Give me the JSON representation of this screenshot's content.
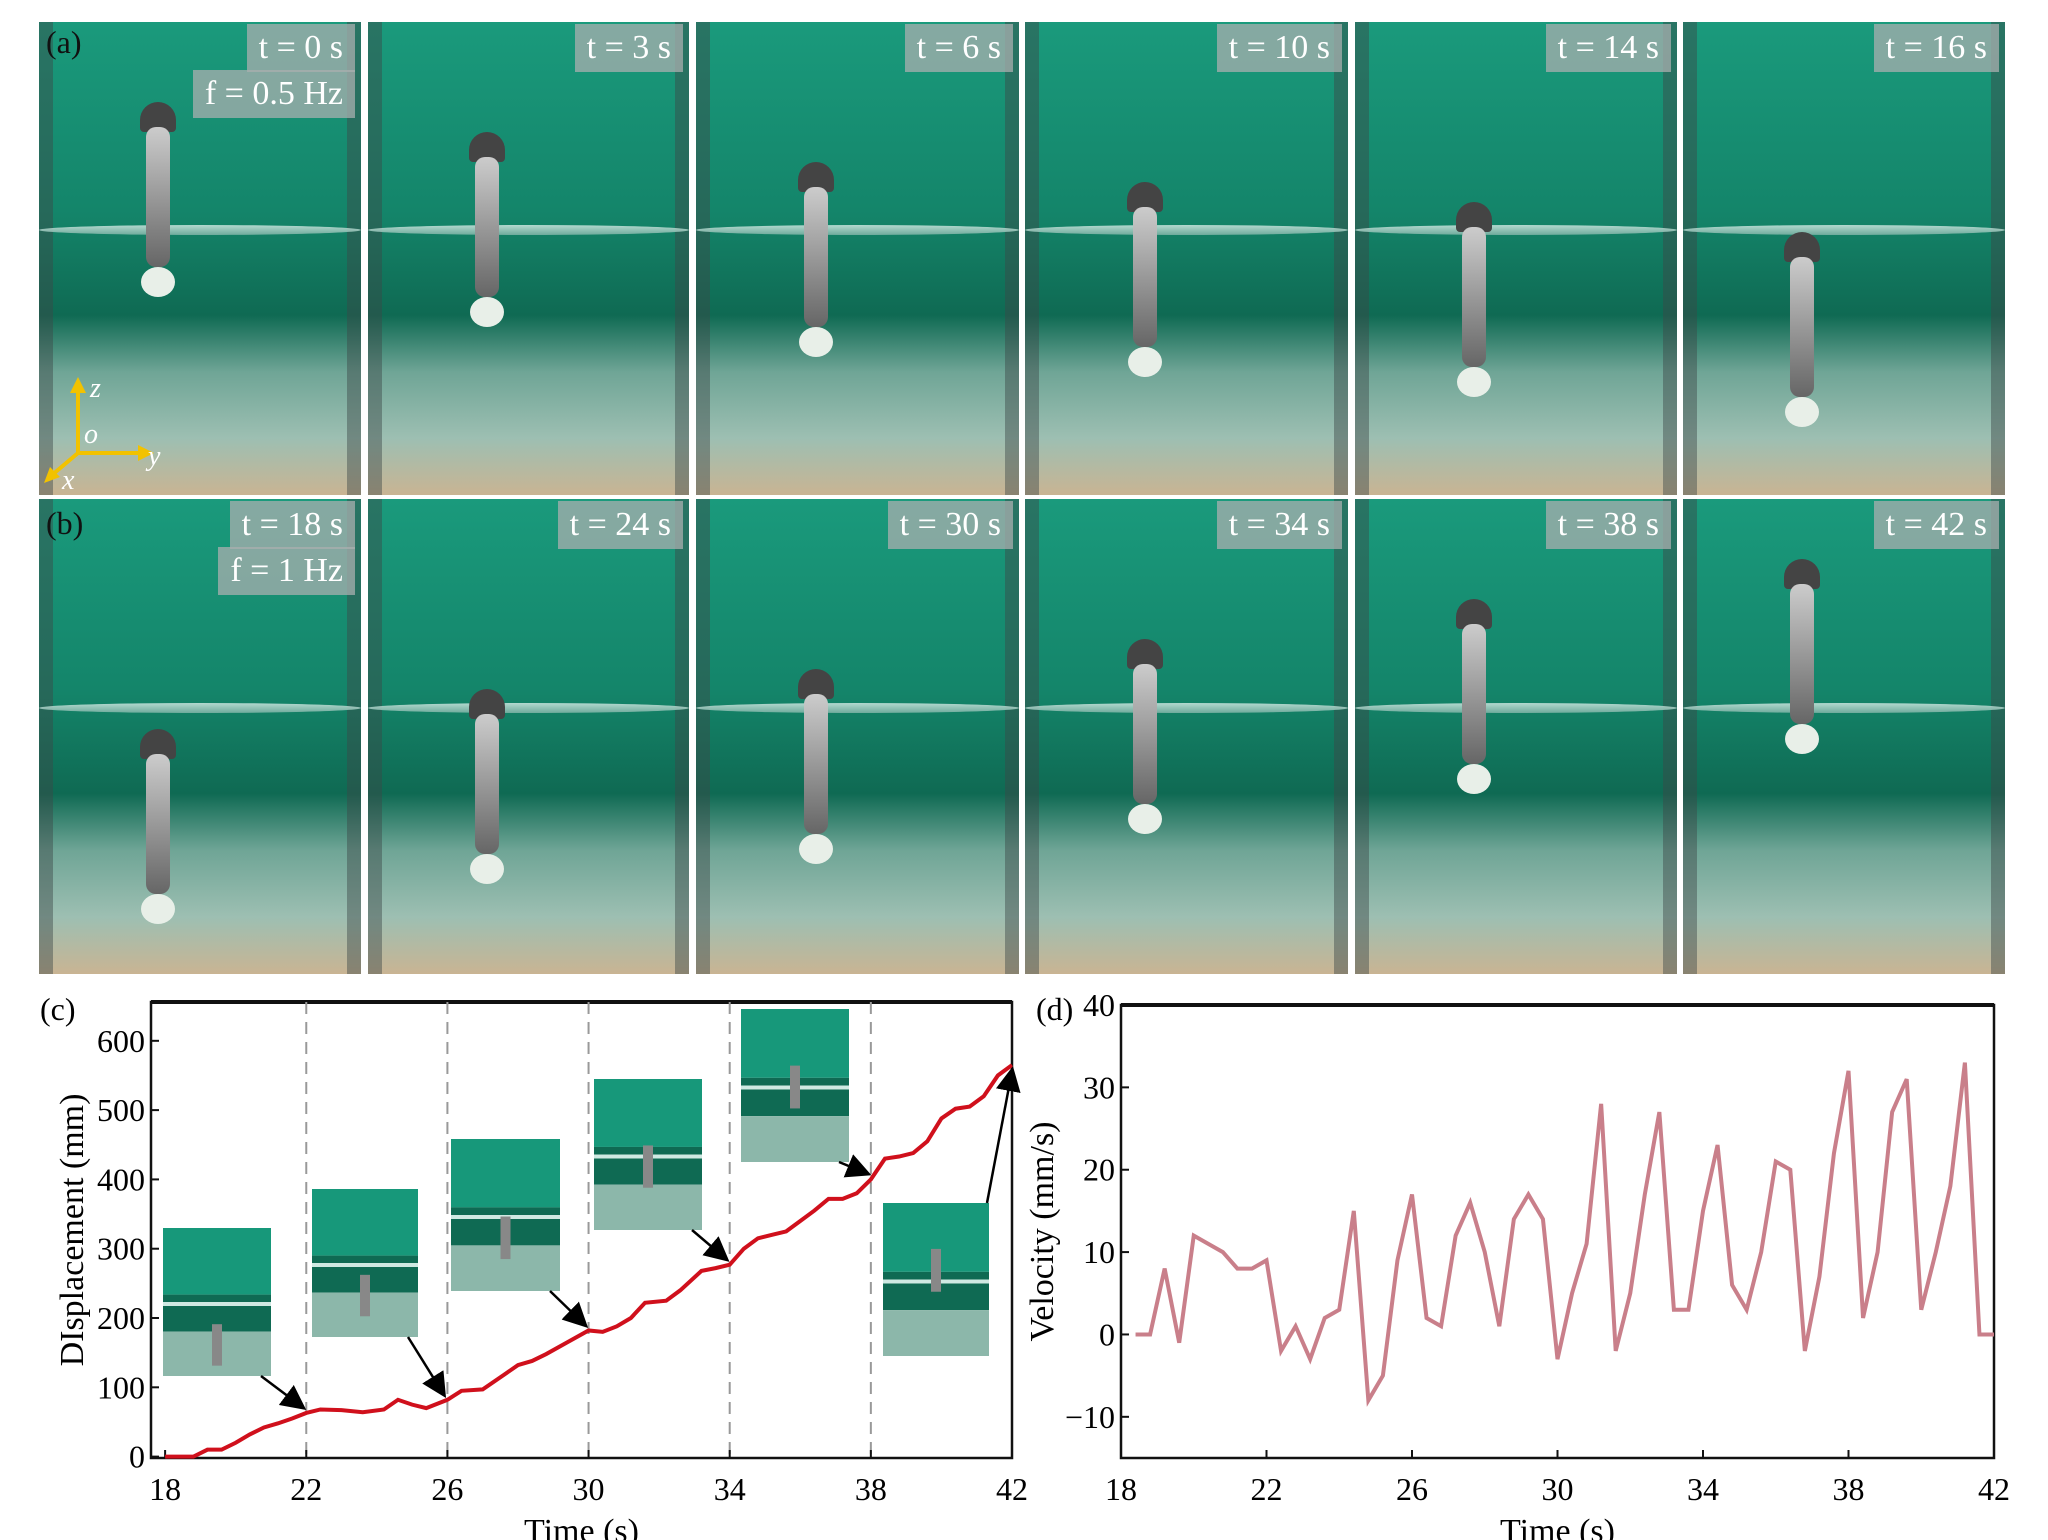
{
  "panels": {
    "a": "(a)",
    "b": "(b)",
    "c": "(c)",
    "d": "(d)"
  },
  "row_a": {
    "frequency": "f = 0.5 Hz",
    "frames": [
      "t = 0 s",
      "t = 3 s",
      "t = 6 s",
      "t = 10 s",
      "t = 14 s",
      "t = 16 s"
    ],
    "axes": {
      "z": "z",
      "o": "o",
      "y": "y",
      "x": "x"
    }
  },
  "row_b": {
    "frequency": "f = 1 Hz",
    "frames": [
      "t = 18 s",
      "t = 24 s",
      "t = 30 s",
      "t = 34 s",
      "t = 38 s",
      "t = 42 s"
    ]
  },
  "chart_data": [
    {
      "type": "line",
      "panel": "(c)",
      "xlabel": "Time (s)",
      "ylabel": "DIsplacement (mm)",
      "xlim": [
        17.6,
        42
      ],
      "ylim": [
        -2,
        656
      ],
      "xticks": [
        18,
        22,
        26,
        30,
        34,
        38,
        42
      ],
      "yticks": [
        0,
        100,
        200,
        300,
        400,
        500,
        600
      ],
      "color": "#d0101c",
      "vlines_dashed": [
        22,
        26,
        30,
        34,
        38
      ],
      "inset_times": [
        22,
        26,
        30,
        34,
        38,
        42
      ],
      "x": [
        18,
        18.8,
        19.2,
        19.6,
        20,
        20.4,
        20.8,
        21.2,
        21.6,
        22,
        22.4,
        23,
        23.6,
        24.2,
        24.6,
        25,
        25.4,
        26,
        26.4,
        27,
        27.6,
        28,
        28.4,
        28.8,
        29.4,
        30,
        30.4,
        30.8,
        31.2,
        31.6,
        32.2,
        32.6,
        33.2,
        33.6,
        34,
        34.4,
        34.8,
        35.2,
        35.6,
        36,
        36.4,
        36.8,
        37.2,
        37.6,
        38,
        38.4,
        38.8,
        39.2,
        39.6,
        40,
        40.4,
        40.8,
        41.2,
        41.6,
        42
      ],
      "y": [
        0,
        0,
        10,
        10,
        20,
        32,
        42,
        48,
        55,
        63,
        68,
        67,
        64,
        68,
        82,
        75,
        70,
        82,
        95,
        97,
        118,
        132,
        138,
        148,
        165,
        182,
        180,
        188,
        200,
        222,
        225,
        240,
        268,
        272,
        277,
        300,
        315,
        320,
        325,
        340,
        355,
        372,
        372,
        380,
        400,
        430,
        433,
        438,
        455,
        488,
        502,
        505,
        520,
        550,
        565
      ]
    },
    {
      "type": "line",
      "panel": "(d)",
      "xlabel": "Time (s)",
      "ylabel": "Velocity (mm/s)",
      "xlim": [
        18,
        42
      ],
      "ylim": [
        -15,
        40
      ],
      "xticks": [
        18,
        22,
        26,
        30,
        34,
        38,
        42
      ],
      "yticks": [
        -10,
        0,
        10,
        20,
        30,
        40
      ],
      "ytick_labels": [
        "−10",
        "0",
        "10",
        "20",
        "30",
        "40"
      ],
      "color": "#c97f8a",
      "x": [
        18.4,
        18.8,
        19.2,
        19.6,
        20,
        20.4,
        20.8,
        21.2,
        21.6,
        22,
        22.4,
        22.8,
        23.2,
        23.6,
        24,
        24.4,
        24.8,
        25.2,
        25.6,
        26,
        26.4,
        26.8,
        27.2,
        27.6,
        28,
        28.4,
        28.8,
        29.2,
        29.6,
        30,
        30.4,
        30.8,
        31.2,
        31.6,
        32,
        32.4,
        32.8,
        33.2,
        33.6,
        34,
        34.4,
        34.8,
        35.2,
        35.6,
        36,
        36.4,
        36.8,
        37.2,
        37.6,
        38,
        38.4,
        38.8,
        39.2,
        39.6,
        40,
        40.4,
        40.8,
        41.2,
        41.6,
        42
      ],
      "y": [
        0,
        0,
        8,
        -1,
        12,
        11,
        10,
        8,
        8,
        9,
        -2,
        1,
        -3,
        2,
        3,
        15,
        -8,
        -5,
        9,
        17,
        2,
        1,
        12,
        16,
        10,
        1,
        14,
        17,
        14,
        -3,
        5,
        11,
        28,
        -2,
        5,
        17,
        27,
        3,
        3,
        15,
        23,
        6,
        3,
        10,
        21,
        20,
        -2,
        7,
        22,
        32,
        2,
        10,
        27,
        31,
        3,
        10,
        18,
        33,
        0,
        0
      ]
    }
  ]
}
